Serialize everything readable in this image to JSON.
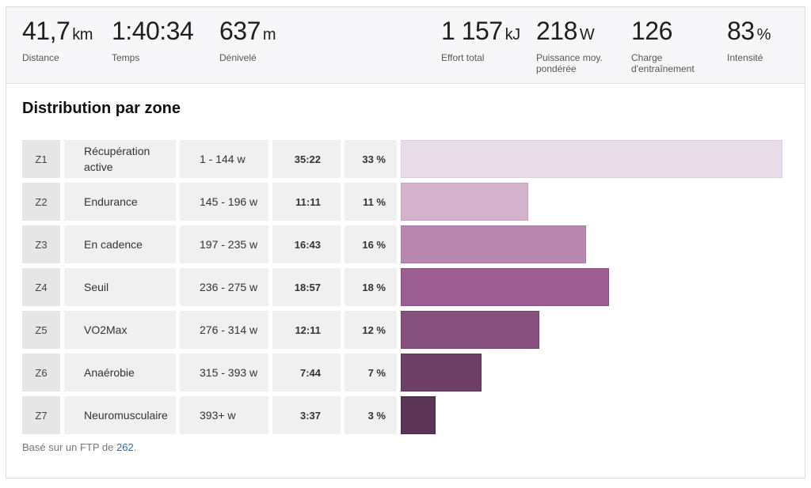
{
  "summary": [
    {
      "value": "41,7",
      "unit": "km",
      "label": "Distance"
    },
    {
      "value": "1:40:34",
      "unit": "",
      "label": "Temps"
    },
    {
      "value": "637",
      "unit": "m",
      "label": "Dénivelé"
    },
    {
      "value": "1 157",
      "unit": "kJ",
      "label": "Effort total"
    },
    {
      "value": "218",
      "unit": "W",
      "label": "Puissance moy.\npondérée"
    },
    {
      "value": "126",
      "unit": "",
      "label": "Charge\nd'entraînement"
    },
    {
      "value": "83",
      "unit": "%",
      "label": "Intensité"
    }
  ],
  "title": "Distribution par zone",
  "zones": [
    {
      "zone": "Z1",
      "name": "Récupération active",
      "range": "1 - 144 w",
      "time": "35:22",
      "pct_label": "33 %",
      "pct": 33,
      "color": "#e8dce8",
      "border": "#ddcfdd"
    },
    {
      "zone": "Z2",
      "name": "Endurance",
      "range": "145 - 196 w",
      "time": "11:11",
      "pct_label": "11 %",
      "pct": 11,
      "color": "#d4b2cc",
      "border": "#c7a1bf"
    },
    {
      "zone": "Z3",
      "name": "En cadence",
      "range": "197 - 235 w",
      "time": "16:43",
      "pct_label": "16 %",
      "pct": 16,
      "color": "#b888b0",
      "border": "#a97ba2"
    },
    {
      "zone": "Z4",
      "name": "Seuil",
      "range": "236 - 275 w",
      "time": "18:57",
      "pct_label": "18 %",
      "pct": 18,
      "color": "#9c5d91",
      "border": "#8a4d80"
    },
    {
      "zone": "Z5",
      "name": "VO2Max",
      "range": "276 - 314 w",
      "time": "12:11",
      "pct_label": "12 %",
      "pct": 12,
      "color": "#86507d",
      "border": "#74426c"
    },
    {
      "zone": "Z6",
      "name": "Anaérobie",
      "range": "315 - 393 w",
      "time": "7:44",
      "pct_label": "7 %",
      "pct": 7,
      "color": "#6e4066",
      "border": "#5c3355"
    },
    {
      "zone": "Z7",
      "name": "Neuromusculaire",
      "range": "393+ w",
      "time": "3:37",
      "pct_label": "3 %",
      "pct": 3,
      "color": "#5c3456",
      "border": "#4a2745"
    }
  ],
  "footer": {
    "prefix": "Basé sur un FTP de ",
    "ftp": "262",
    "suffix": "."
  }
}
